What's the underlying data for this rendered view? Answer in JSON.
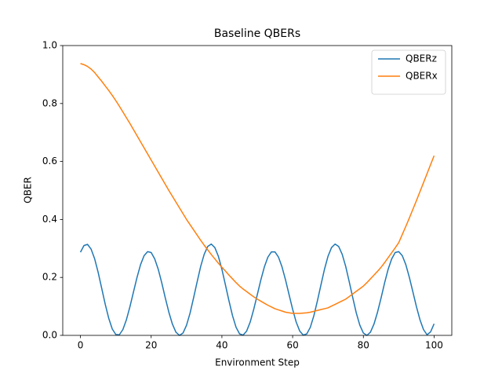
{
  "chart_data": {
    "type": "line",
    "title": "Baseline QBERs",
    "xlabel": "Environment Step",
    "ylabel": "QBER",
    "x": [
      0,
      1,
      2,
      3,
      4,
      5,
      6,
      7,
      8,
      9,
      10,
      11,
      12,
      13,
      14,
      15,
      16,
      17,
      18,
      19,
      20,
      21,
      22,
      23,
      24,
      25,
      26,
      27,
      28,
      29,
      30,
      31,
      32,
      33,
      34,
      35,
      36,
      37,
      38,
      39,
      40,
      41,
      42,
      43,
      44,
      45,
      46,
      47,
      48,
      49,
      50,
      51,
      52,
      53,
      54,
      55,
      56,
      57,
      58,
      59,
      60,
      61,
      62,
      63,
      64,
      65,
      66,
      67,
      68,
      69,
      70,
      71,
      72,
      73,
      74,
      75,
      76,
      77,
      78,
      79,
      80,
      81,
      82,
      83,
      84,
      85,
      86,
      87,
      88,
      89,
      90,
      91,
      92,
      93,
      94,
      95,
      96,
      97,
      98,
      99,
      100
    ],
    "series": [
      {
        "name": "QBERz",
        "color": "#1f77b4",
        "values": [
          0.287,
          0.31,
          0.314,
          0.298,
          0.265,
          0.218,
          0.163,
          0.108,
          0.059,
          0.022,
          0.003,
          0.002,
          0.02,
          0.054,
          0.099,
          0.15,
          0.2,
          0.244,
          0.275,
          0.289,
          0.286,
          0.264,
          0.228,
          0.181,
          0.129,
          0.08,
          0.039,
          0.011,
          0.0,
          0.008,
          0.035,
          0.077,
          0.13,
          0.185,
          0.238,
          0.28,
          0.307,
          0.315,
          0.303,
          0.273,
          0.228,
          0.174,
          0.119,
          0.068,
          0.028,
          0.005,
          0.001,
          0.015,
          0.046,
          0.09,
          0.14,
          0.191,
          0.236,
          0.27,
          0.288,
          0.288,
          0.27,
          0.236,
          0.191,
          0.14,
          0.09,
          0.046,
          0.015,
          0.001,
          0.005,
          0.028,
          0.068,
          0.119,
          0.174,
          0.228,
          0.273,
          0.303,
          0.315,
          0.307,
          0.28,
          0.238,
          0.185,
          0.13,
          0.077,
          0.035,
          0.008,
          0.0,
          0.011,
          0.039,
          0.08,
          0.129,
          0.181,
          0.228,
          0.264,
          0.286,
          0.289,
          0.275,
          0.244,
          0.2,
          0.15,
          0.099,
          0.054,
          0.02,
          0.002,
          0.012,
          0.04
        ]
      },
      {
        "name": "QBERx",
        "color": "#ff7f0e",
        "values": [
          0.938,
          0.934,
          0.928,
          0.919,
          0.907,
          0.892,
          0.877,
          0.861,
          0.845,
          0.828,
          0.81,
          0.791,
          0.771,
          0.751,
          0.731,
          0.71,
          0.689,
          0.668,
          0.647,
          0.626,
          0.605,
          0.584,
          0.563,
          0.542,
          0.521,
          0.5,
          0.48,
          0.46,
          0.44,
          0.42,
          0.4,
          0.382,
          0.364,
          0.346,
          0.328,
          0.311,
          0.295,
          0.279,
          0.264,
          0.249,
          0.235,
          0.222,
          0.208,
          0.195,
          0.182,
          0.17,
          0.16,
          0.151,
          0.142,
          0.133,
          0.125,
          0.118,
          0.111,
          0.104,
          0.098,
          0.092,
          0.088,
          0.084,
          0.08,
          0.078,
          0.076,
          0.076,
          0.076,
          0.077,
          0.078,
          0.08,
          0.083,
          0.086,
          0.089,
          0.092,
          0.095,
          0.101,
          0.107,
          0.113,
          0.119,
          0.125,
          0.134,
          0.143,
          0.152,
          0.161,
          0.17,
          0.182,
          0.195,
          0.208,
          0.221,
          0.235,
          0.251,
          0.268,
          0.285,
          0.302,
          0.32,
          0.348,
          0.376,
          0.405,
          0.435,
          0.465,
          0.496,
          0.527,
          0.558,
          0.589,
          0.62
        ]
      }
    ],
    "xlim": [
      -5,
      105
    ],
    "xticks": [
      0,
      20,
      40,
      60,
      80,
      100
    ],
    "ylim": [
      0,
      1
    ],
    "yticks": [
      {
        "value": 0,
        "label": "0.0"
      },
      0.2,
      0.4,
      0.6,
      0.8,
      {
        "value": 1,
        "label": "1.0"
      }
    ],
    "legend": "upper right"
  }
}
